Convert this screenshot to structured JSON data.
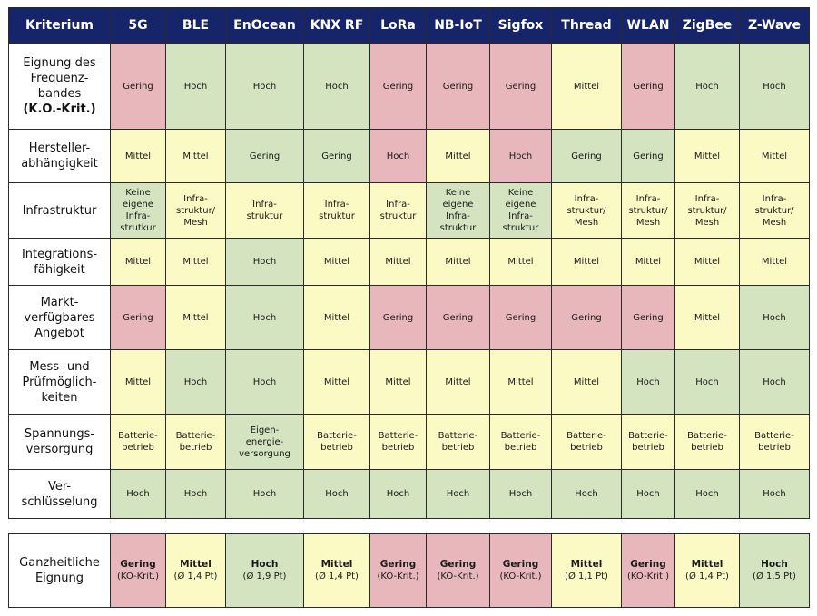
{
  "columns": [
    "Kriterium",
    "5G",
    "BLE",
    "EnOcean",
    "KNX RF",
    "LoRa",
    "NB-IoT",
    "Sigfox",
    "Thread",
    "WLAN",
    "ZigBee",
    "Z-Wave"
  ],
  "colors": {
    "header": "#16246a",
    "gering": "#e8b7bc",
    "mittel": "#fbf9c4",
    "hoch": "#d5e4c0"
  },
  "rows": [
    {
      "label_lines": [
        "Eignung des",
        "Frequenz-",
        "bandes"
      ],
      "label_bold": "(K.O.-Krit.)",
      "cells": [
        {
          "text": "Gering",
          "level": "gering"
        },
        {
          "text": "Hoch",
          "level": "hoch"
        },
        {
          "text": "Hoch",
          "level": "hoch"
        },
        {
          "text": "Hoch",
          "level": "hoch"
        },
        {
          "text": "Gering",
          "level": "gering"
        },
        {
          "text": "Gering",
          "level": "gering"
        },
        {
          "text": "Gering",
          "level": "gering"
        },
        {
          "text": "Mittel",
          "level": "mittel"
        },
        {
          "text": "Gering",
          "level": "gering"
        },
        {
          "text": "Hoch",
          "level": "hoch"
        },
        {
          "text": "Hoch",
          "level": "hoch"
        }
      ]
    },
    {
      "label_lines": [
        "Hersteller-",
        "abhängigkeit"
      ],
      "cells": [
        {
          "text": "Mittel",
          "level": "mittel"
        },
        {
          "text": "Mittel",
          "level": "mittel"
        },
        {
          "text": "Gering",
          "level": "hoch"
        },
        {
          "text": "Gering",
          "level": "hoch"
        },
        {
          "text": "Hoch",
          "level": "gering"
        },
        {
          "text": "Mittel",
          "level": "mittel"
        },
        {
          "text": "Hoch",
          "level": "gering"
        },
        {
          "text": "Gering",
          "level": "hoch"
        },
        {
          "text": "Gering",
          "level": "hoch"
        },
        {
          "text": "Mittel",
          "level": "mittel"
        },
        {
          "text": "Mittel",
          "level": "mittel"
        }
      ]
    },
    {
      "label_lines": [
        "Infrastruktur"
      ],
      "cells": [
        {
          "text": "Keine eigene Infra- strutkur",
          "lines": [
            "Keine",
            "eigene",
            "Infra-",
            "strutkur"
          ],
          "level": "hoch"
        },
        {
          "text": "Infra- struktur/ Mesh",
          "lines": [
            "Infra-",
            "struktur/",
            "Mesh"
          ],
          "level": "mittel"
        },
        {
          "text": "Infra- struktur",
          "lines": [
            "Infra-",
            "struktur"
          ],
          "level": "mittel"
        },
        {
          "text": "Infra- struktur",
          "lines": [
            "Infra-",
            "struktur"
          ],
          "level": "mittel"
        },
        {
          "text": "Infra- struktur",
          "lines": [
            "Infra-",
            "struktur"
          ],
          "level": "mittel"
        },
        {
          "text": "Keine eigene Infra- struktur",
          "lines": [
            "Keine",
            "eigene",
            "Infra-",
            "struktur"
          ],
          "level": "hoch"
        },
        {
          "text": "Keine eigene Infra- struktur",
          "lines": [
            "Keine",
            "eigene",
            "Infra-",
            "struktur"
          ],
          "level": "hoch"
        },
        {
          "text": "Infra- struktur/ Mesh",
          "lines": [
            "Infra-",
            "struktur/",
            "Mesh"
          ],
          "level": "mittel"
        },
        {
          "text": "Infra- struktur/ Mesh",
          "lines": [
            "Infra-",
            "struktur/",
            "Mesh"
          ],
          "level": "mittel"
        },
        {
          "text": "Infra- struktur/ Mesh",
          "lines": [
            "Infra-",
            "struktur/",
            "Mesh"
          ],
          "level": "mittel"
        },
        {
          "text": "Infra- struktur/ Mesh",
          "lines": [
            "Infra-",
            "struktur/",
            "Mesh"
          ],
          "level": "mittel"
        }
      ]
    },
    {
      "label_lines": [
        "Integrations-",
        "fähigkeit"
      ],
      "cells": [
        {
          "text": "Mittel",
          "level": "mittel"
        },
        {
          "text": "Mittel",
          "level": "mittel"
        },
        {
          "text": "Hoch",
          "level": "hoch"
        },
        {
          "text": "Mittel",
          "level": "mittel"
        },
        {
          "text": "Mittel",
          "level": "mittel"
        },
        {
          "text": "Mittel",
          "level": "mittel"
        },
        {
          "text": "Mittel",
          "level": "mittel"
        },
        {
          "text": "Mittel",
          "level": "mittel"
        },
        {
          "text": "Mittel",
          "level": "mittel"
        },
        {
          "text": "Mittel",
          "level": "mittel"
        },
        {
          "text": "Mittel",
          "level": "mittel"
        }
      ]
    },
    {
      "label_lines": [
        "Markt-",
        "verfügbares",
        "Angebot"
      ],
      "cells": [
        {
          "text": "Gering",
          "level": "gering"
        },
        {
          "text": "Mittel",
          "level": "mittel"
        },
        {
          "text": "Hoch",
          "level": "hoch"
        },
        {
          "text": "Mittel",
          "level": "mittel"
        },
        {
          "text": "Gering",
          "level": "gering"
        },
        {
          "text": "Gering",
          "level": "gering"
        },
        {
          "text": "Gering",
          "level": "gering"
        },
        {
          "text": "Gering",
          "level": "gering"
        },
        {
          "text": "Gering",
          "level": "gering"
        },
        {
          "text": "Mittel",
          "level": "mittel"
        },
        {
          "text": "Hoch",
          "level": "hoch"
        }
      ]
    },
    {
      "label_lines": [
        "Mess- und",
        "Prüfmöglich-",
        "keiten"
      ],
      "cells": [
        {
          "text": "Mittel",
          "level": "mittel"
        },
        {
          "text": "Hoch",
          "level": "hoch"
        },
        {
          "text": "Hoch",
          "level": "hoch"
        },
        {
          "text": "Mittel",
          "level": "mittel"
        },
        {
          "text": "Mittel",
          "level": "mittel"
        },
        {
          "text": "Mittel",
          "level": "mittel"
        },
        {
          "text": "Mittel",
          "level": "mittel"
        },
        {
          "text": "Mittel",
          "level": "mittel"
        },
        {
          "text": "Hoch",
          "level": "hoch"
        },
        {
          "text": "Hoch",
          "level": "hoch"
        },
        {
          "text": "Hoch",
          "level": "hoch"
        }
      ]
    },
    {
      "label_lines": [
        "Spannungs-",
        "versorgung"
      ],
      "cells": [
        {
          "text": "Batterie- betrieb",
          "lines": [
            "Batterie-",
            "betrieb"
          ],
          "level": "mittel"
        },
        {
          "text": "Batterie- betrieb",
          "lines": [
            "Batterie-",
            "betrieb"
          ],
          "level": "mittel"
        },
        {
          "text": "Eigen- energie- versorgung",
          "lines": [
            "Eigen-",
            "energie-",
            "versorgung"
          ],
          "level": "hoch"
        },
        {
          "text": "Batterie- betrieb",
          "lines": [
            "Batterie-",
            "betrieb"
          ],
          "level": "mittel"
        },
        {
          "text": "Batterie- betrieb",
          "lines": [
            "Batterie-",
            "betrieb"
          ],
          "level": "mittel"
        },
        {
          "text": "Batterie- betrieb",
          "lines": [
            "Batterie-",
            "betrieb"
          ],
          "level": "mittel"
        },
        {
          "text": "Batterie- betrieb",
          "lines": [
            "Batterie-",
            "betrieb"
          ],
          "level": "mittel"
        },
        {
          "text": "Batterie- betrieb",
          "lines": [
            "Batterie-",
            "betrieb"
          ],
          "level": "mittel"
        },
        {
          "text": "Batterie- betrieb",
          "lines": [
            "Batterie-",
            "betrieb"
          ],
          "level": "mittel"
        },
        {
          "text": "Batterie- betrieb",
          "lines": [
            "Batterie-",
            "betrieb"
          ],
          "level": "mittel"
        },
        {
          "text": "Batterie- betrieb",
          "lines": [
            "Batterie-",
            "betrieb"
          ],
          "level": "mittel"
        }
      ]
    },
    {
      "label_lines": [
        "Ver-",
        "schlüsselung"
      ],
      "cells": [
        {
          "text": "Hoch",
          "level": "hoch"
        },
        {
          "text": "Hoch",
          "level": "hoch"
        },
        {
          "text": "Hoch",
          "level": "hoch"
        },
        {
          "text": "Hoch",
          "level": "hoch"
        },
        {
          "text": "Hoch",
          "level": "hoch"
        },
        {
          "text": "Hoch",
          "level": "hoch"
        },
        {
          "text": "Hoch",
          "level": "hoch"
        },
        {
          "text": "Hoch",
          "level": "hoch"
        },
        {
          "text": "Hoch",
          "level": "hoch"
        },
        {
          "text": "Hoch",
          "level": "hoch"
        },
        {
          "text": "Hoch",
          "level": "hoch"
        }
      ]
    }
  ],
  "summary": {
    "label_lines": [
      "Ganzheitliche",
      "Eignung"
    ],
    "cells": [
      {
        "main": "Gering",
        "sub": "(KO-Krit.)",
        "level": "gering"
      },
      {
        "main": "Mittel",
        "sub": "(Ø 1,4 Pt)",
        "level": "mittel"
      },
      {
        "main": "Hoch",
        "sub": "(Ø 1,9 Pt)",
        "level": "hoch"
      },
      {
        "main": "Mittel",
        "sub": "(Ø 1,4 Pt)",
        "level": "mittel"
      },
      {
        "main": "Gering",
        "sub": "(KO-Krit.)",
        "level": "gering"
      },
      {
        "main": "Gering",
        "sub": "(KO-Krit.)",
        "level": "gering"
      },
      {
        "main": "Gering",
        "sub": "(KO-Krit.)",
        "level": "gering"
      },
      {
        "main": "Mittel",
        "sub": "(Ø 1,1 Pt)",
        "level": "mittel"
      },
      {
        "main": "Gering",
        "sub": "(KO-Krit.)",
        "level": "gering"
      },
      {
        "main": "Mittel",
        "sub": "(Ø 1,4 Pt)",
        "level": "mittel"
      },
      {
        "main": "Hoch",
        "sub": "(Ø 1,5 Pt)",
        "level": "hoch"
      }
    ]
  }
}
